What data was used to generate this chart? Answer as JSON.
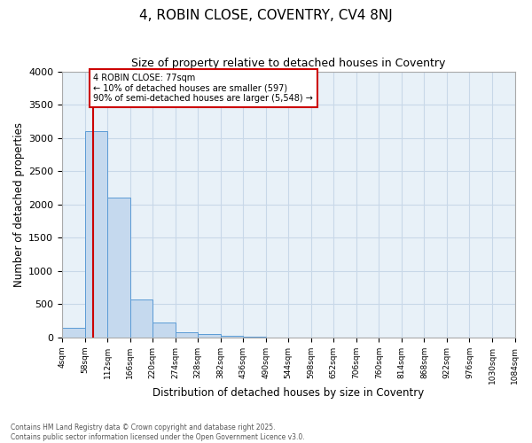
{
  "title": "4, ROBIN CLOSE, COVENTRY, CV4 8NJ",
  "subtitle": "Size of property relative to detached houses in Coventry",
  "xlabel": "Distribution of detached houses by size in Coventry",
  "ylabel": "Number of detached properties",
  "bar_color": "#c5d9ee",
  "bar_edge_color": "#5b9bd5",
  "grid_color": "#c8d8e8",
  "background_color": "#e8f1f8",
  "bin_edges": [
    4,
    58,
    112,
    166,
    220,
    274,
    328,
    382,
    436,
    490,
    544,
    598,
    652,
    706,
    760,
    814,
    868,
    922,
    976,
    1030,
    1084
  ],
  "bar_heights": [
    150,
    3100,
    2100,
    570,
    220,
    80,
    55,
    20,
    10,
    5,
    3,
    2,
    0,
    0,
    0,
    0,
    0,
    0,
    0,
    0
  ],
  "bin_labels": [
    "4sqm",
    "58sqm",
    "112sqm",
    "166sqm",
    "220sqm",
    "274sqm",
    "328sqm",
    "382sqm",
    "436sqm",
    "490sqm",
    "544sqm",
    "598sqm",
    "652sqm",
    "706sqm",
    "760sqm",
    "814sqm",
    "868sqm",
    "922sqm",
    "976sqm",
    "1030sqm",
    "1084sqm"
  ],
  "property_size": 77,
  "property_line_color": "#cc0000",
  "annotation_line1": "4 ROBIN CLOSE: 77sqm",
  "annotation_line2": "← 10% of detached houses are smaller (597)",
  "annotation_line3": "90% of semi-detached houses are larger (5,548) →",
  "annotation_box_color": "#cc0000",
  "ylim": [
    0,
    4000
  ],
  "yticks": [
    0,
    500,
    1000,
    1500,
    2000,
    2500,
    3000,
    3500,
    4000
  ],
  "footer": "Contains HM Land Registry data © Crown copyright and database right 2025.\nContains public sector information licensed under the Open Government Licence v3.0.",
  "figwidth": 6.0,
  "figheight": 5.0,
  "dpi": 100
}
